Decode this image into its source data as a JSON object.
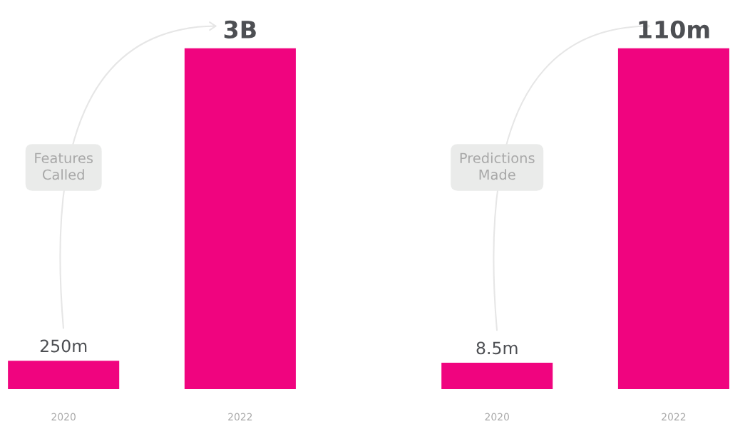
{
  "chart_data": [
    {
      "type": "bar",
      "categories": [
        "2020",
        "2022"
      ],
      "values": [
        250000000,
        3000000000
      ],
      "value_labels": [
        "250m",
        "3B"
      ],
      "color": "#f0047f",
      "annotations": [
        "Features\nCalled"
      ]
    },
    {
      "type": "bar",
      "categories": [
        "2020",
        "2022"
      ],
      "values": [
        8500000,
        110000000
      ],
      "value_labels": [
        "8.5m",
        "110m"
      ],
      "color": "#f0047f",
      "annotations": [
        "Predictions\nMade"
      ]
    }
  ]
}
